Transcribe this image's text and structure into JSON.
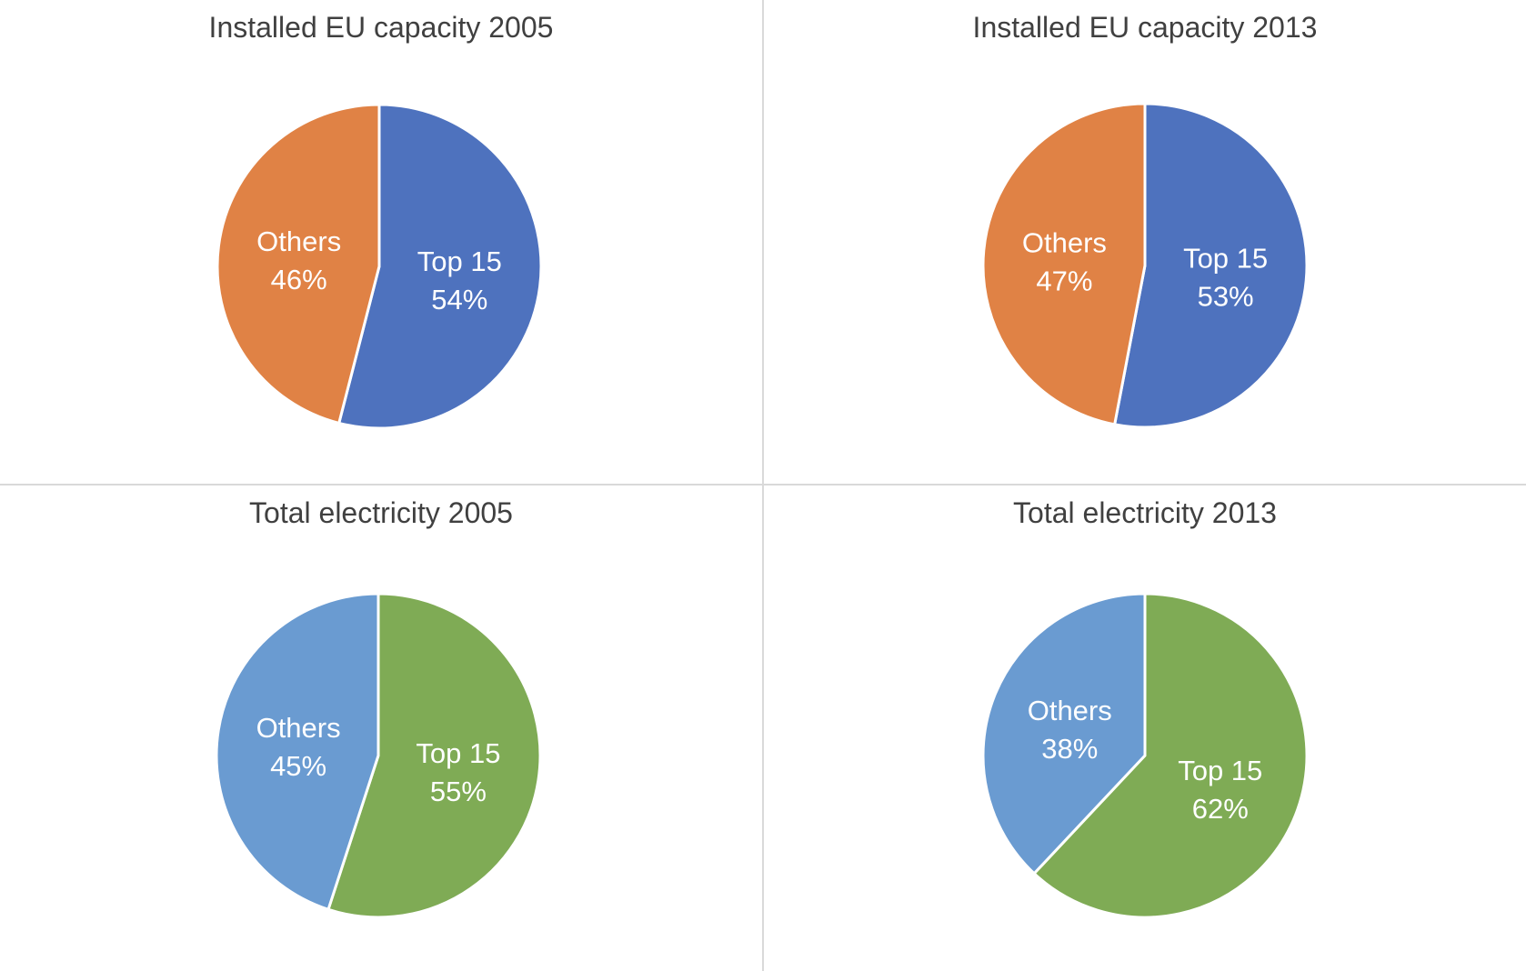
{
  "chart_data": [
    {
      "type": "pie",
      "title": "Installed EU capacity 2005",
      "slices": [
        {
          "label": "Top 15",
          "value": 54,
          "value_label": "54%",
          "color": "#4e72be"
        },
        {
          "label": "Others",
          "value": 46,
          "value_label": "46%",
          "color": "#e08245"
        }
      ]
    },
    {
      "type": "pie",
      "title": "Installed EU capacity 2013",
      "slices": [
        {
          "label": "Top 15",
          "value": 53,
          "value_label": "53%",
          "color": "#4e72be"
        },
        {
          "label": "Others",
          "value": 47,
          "value_label": "47%",
          "color": "#e08245"
        }
      ]
    },
    {
      "type": "pie",
      "title": "Total electricity 2005",
      "slices": [
        {
          "label": "Top 15",
          "value": 55,
          "value_label": "55%",
          "color": "#7fab55"
        },
        {
          "label": "Others",
          "value": 45,
          "value_label": "45%",
          "color": "#6a9bd1"
        }
      ]
    },
    {
      "type": "pie",
      "title": "Total electricity 2013",
      "slices": [
        {
          "label": "Top 15",
          "value": 62,
          "value_label": "62%",
          "color": "#7fab55"
        },
        {
          "label": "Others",
          "value": 38,
          "value_label": "38%",
          "color": "#6a9bd1"
        }
      ]
    }
  ]
}
